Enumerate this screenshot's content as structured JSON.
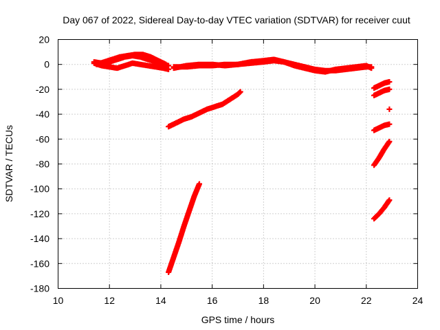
{
  "chart_data": {
    "type": "scatter",
    "title": "Day 067 of 2022, Sidereal Day-to-day VTEC variation (SDTVAR) for receiver cuut",
    "xlabel": "GPS time / hours",
    "ylabel": "SDTVAR / TECUs",
    "xlim": [
      10,
      24
    ],
    "ylim": [
      -180,
      20
    ],
    "xticks": [
      10,
      12,
      14,
      16,
      18,
      20,
      22,
      24
    ],
    "yticks": [
      20,
      0,
      -20,
      -40,
      -60,
      -80,
      -100,
      -120,
      -140,
      -160,
      -180
    ],
    "grid": true,
    "legend": "none",
    "marker": "plus",
    "color": "#ff0000",
    "series": [
      {
        "x": [
          11.4,
          11.7,
          12.0,
          12.3,
          12.6,
          12.9,
          13.2,
          13.5,
          13.8,
          14.1,
          14.3
        ],
        "y": [
          1,
          -1,
          -2,
          -3,
          -1,
          1,
          0,
          -1,
          -2,
          -3,
          -4
        ]
      },
      {
        "x": [
          11.4,
          11.7,
          12.0,
          12.3,
          12.6,
          12.9,
          13.2,
          13.5,
          13.8,
          14.1,
          14.3
        ],
        "y": [
          2,
          1,
          2,
          4,
          6,
          7,
          6,
          4,
          2,
          0,
          -1
        ]
      },
      {
        "x": [
          11.5,
          11.8,
          12.1,
          12.4,
          12.7,
          13.0,
          13.3,
          13.6,
          13.9,
          14.2
        ],
        "y": [
          0,
          2,
          4,
          6,
          7,
          8,
          8,
          6,
          3,
          0
        ]
      },
      {
        "x": [
          14.5,
          15.0,
          15.5,
          16.0,
          16.5,
          17.0,
          17.5,
          18.0,
          18.4,
          18.8,
          19.2,
          19.6,
          20.0,
          20.4,
          20.8,
          21.2,
          21.6,
          22.0,
          22.2
        ],
        "y": [
          -2,
          -2,
          -1,
          -1,
          0,
          0,
          1,
          2,
          3,
          2,
          0,
          -2,
          -4,
          -5,
          -5,
          -4,
          -3,
          -2,
          -2
        ]
      },
      {
        "x": [
          14.5,
          15.0,
          15.5,
          16.0,
          16.5,
          17.0,
          17.5,
          18.0,
          18.4,
          18.8,
          19.2,
          19.6,
          20.0,
          20.4,
          20.8,
          21.2,
          21.6,
          22.0,
          22.2
        ],
        "y": [
          -3,
          -1,
          0,
          0,
          -1,
          0,
          2,
          3,
          4,
          2,
          -1,
          -3,
          -5,
          -6,
          -4,
          -3,
          -2,
          -1,
          -3
        ]
      },
      {
        "x": [
          14.3,
          14.6,
          14.9,
          15.2,
          15.5,
          15.8,
          16.1,
          16.4,
          16.7,
          17.0,
          17.1
        ],
        "y": [
          -50,
          -47,
          -44,
          -42,
          -39,
          -36,
          -34,
          -32,
          -28,
          -24,
          -22
        ]
      },
      {
        "x": [
          14.3,
          14.5,
          14.7,
          14.9,
          15.1,
          15.3,
          15.5
        ],
        "y": [
          -167,
          -155,
          -143,
          -130,
          -118,
          -106,
          -96
        ]
      },
      {
        "x": [
          22.3,
          22.5,
          22.7,
          22.9
        ],
        "y": [
          -19,
          -17,
          -15,
          -14
        ]
      },
      {
        "x": [
          22.3,
          22.5,
          22.7,
          22.9
        ],
        "y": [
          -25,
          -23,
          -21,
          -20
        ]
      },
      {
        "x": [
          22.9
        ],
        "y": [
          -36
        ]
      },
      {
        "x": [
          22.3,
          22.5,
          22.7,
          22.9
        ],
        "y": [
          -53,
          -51,
          -49,
          -48
        ]
      },
      {
        "x": [
          22.3,
          22.5,
          22.7,
          22.9
        ],
        "y": [
          -81,
          -75,
          -68,
          -62
        ]
      },
      {
        "x": [
          22.3,
          22.5,
          22.7,
          22.9
        ],
        "y": [
          -124,
          -120,
          -115,
          -109
        ]
      }
    ]
  }
}
